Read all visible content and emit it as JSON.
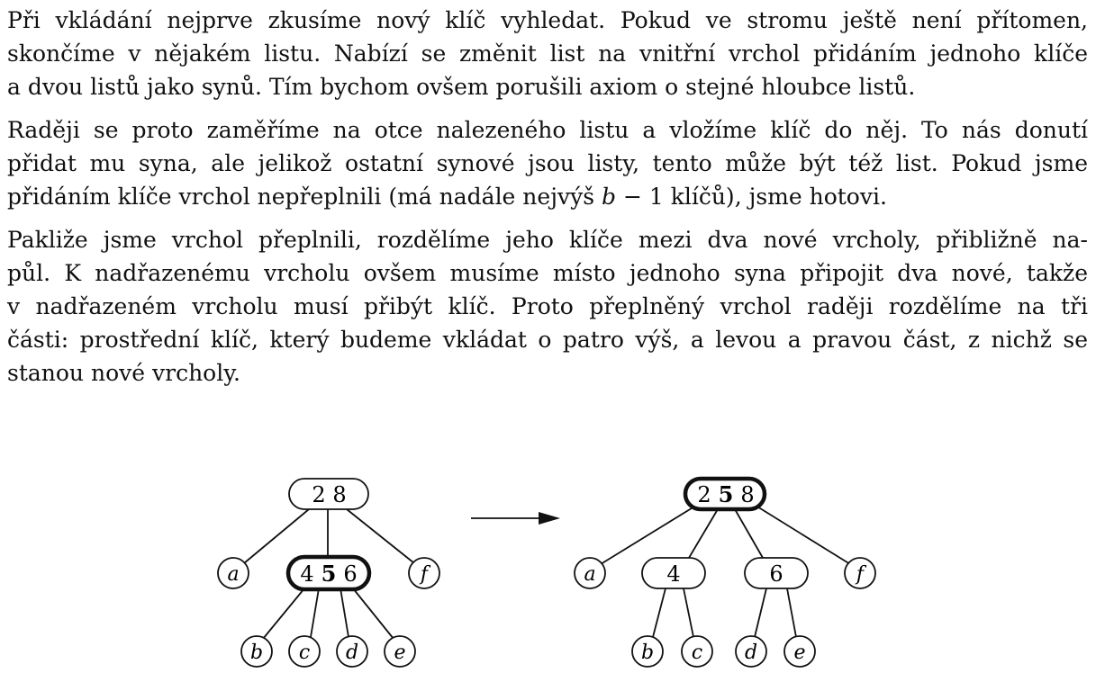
{
  "paragraphs": [
    {
      "lines": [
        "Při vkládání nejprve zkusíme nový klíč vyhledat. Pokud ve stromu ještě není přítomen,",
        "skončíme v nějakém listu. Nabízí se změnit list na vnitřní vrchol přidáním jednoho klíče",
        "a dvou listů jako synů. Tím bychom ovšem porušili axiom o stejné hloubce listů."
      ]
    },
    {
      "lines": [
        "Raději se proto zaměříme na otce nalezeného listu a vložíme klíč do něj. To nás donutí",
        "přidat mu syna, ale jelikož ostatní synové jsou listy, tento může být též list. Pokud jsme"
      ],
      "last_line": {
        "before": "přidáním klíče vrchol nepřeplnili (má nadále nejvýš ",
        "math": "b",
        "after": " − 1 klíčů), jsme hotovi."
      }
    },
    {
      "lines": [
        "Pakliže jsme vrchol přeplnili, rozdělíme jeho klíče mezi dva nové vrcholy, přibližně na-",
        "půl. K nadřazenému vrcholu ovšem musíme místo jednoho syna připojit dva nové, takže",
        "v nadřazeném vrcholu musí přibýt klíč. Proto přeplněný vrchol raději rozdělíme na tři",
        "části: prostřední klíč, který budeme vkládat o patro výš, a levou a pravou část, z nichž se",
        "stanou nové vrcholy."
      ]
    }
  ],
  "diagram": {
    "before": {
      "root": {
        "keys": [
          "2",
          "8"
        ]
      },
      "overflow_node": {
        "keys": [
          "4",
          "5",
          "6"
        ],
        "bold_key": "5"
      },
      "leaves_top": [
        "a",
        "f"
      ],
      "leaves_bottom": [
        "b",
        "c",
        "d",
        "e"
      ]
    },
    "after": {
      "root": {
        "keys": [
          "2",
          "5",
          "8"
        ],
        "bold_key": "5"
      },
      "left_node": {
        "keys": [
          "4"
        ]
      },
      "right_node": {
        "keys": [
          "6"
        ]
      },
      "leaves_top": [
        "a",
        "f"
      ],
      "leaves_bottom": [
        "b",
        "c",
        "d",
        "e"
      ]
    }
  }
}
